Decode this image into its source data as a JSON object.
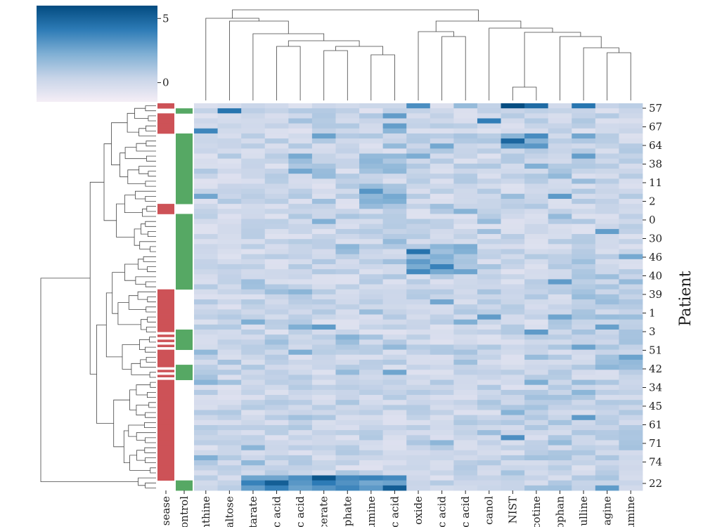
{
  "chart_data": {
    "type": "heatmap",
    "title": "",
    "ylabel": "Patient",
    "colorbar": {
      "ticks": [
        {
          "label": "5",
          "value": 5
        },
        {
          "label": "0",
          "value": 0
        }
      ],
      "vmin": -1.5,
      "vmax": 6,
      "colors": [
        "#f5eef6",
        "#c7d4e8",
        "#7fafd4",
        "#2d7bb6",
        "#034b80"
      ]
    },
    "group_columns": [
      {
        "label": "sease",
        "color": "#cd5257"
      },
      {
        "label": "ontrol",
        "color": "#56a864"
      }
    ],
    "column_labels": [
      "nthine",
      "altose",
      "tarate",
      "c acid",
      "c acid",
      "cerate",
      "phate",
      "umine",
      "c acid",
      "oxide",
      "c acid",
      "c acid",
      "canol",
      "NIST",
      "cotine",
      "ophan",
      "ulline",
      "agine",
      "umine"
    ],
    "row_tick_labels": [
      "57",
      "67",
      "64",
      "38",
      "11",
      "2",
      "0",
      "30",
      "46",
      "40",
      "39",
      "1",
      "3",
      "51",
      "42",
      "34",
      "45",
      "61",
      "71",
      "74",
      "22"
    ],
    "n_rows": 77,
    "seed": 7
  }
}
